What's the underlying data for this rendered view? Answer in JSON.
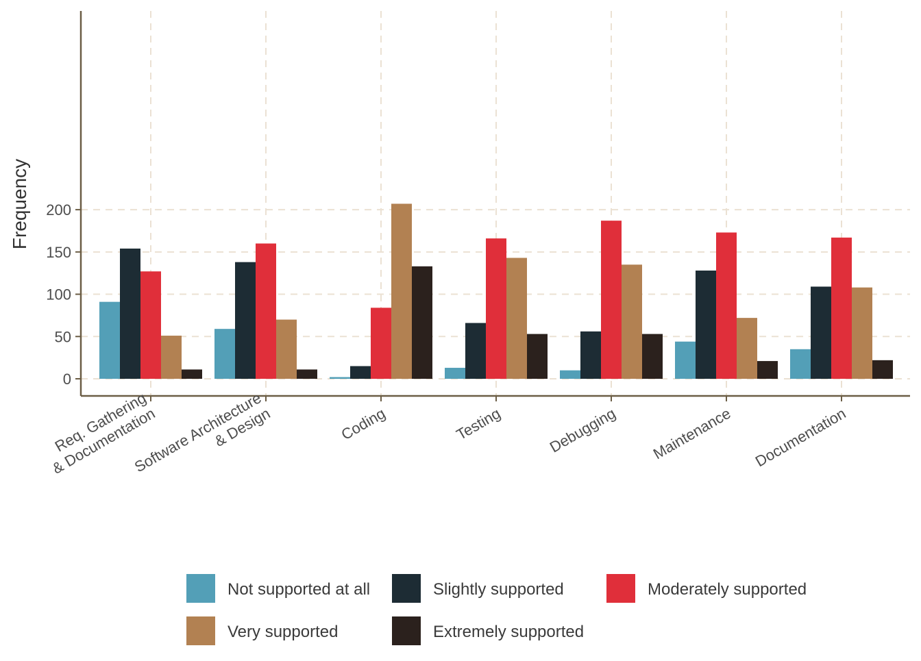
{
  "chart_data": {
    "type": "bar",
    "ylabel": "Frequency",
    "xlabel": "",
    "ylim": [
      -10,
      218
    ],
    "yticks": [
      0,
      50,
      100,
      150,
      200
    ],
    "grid": true,
    "legend_position": "bottom",
    "categories": [
      [
        "Req. Gathering",
        "& Documentation"
      ],
      [
        "Software Architecture",
        "& Design"
      ],
      [
        "Coding"
      ],
      [
        "Testing"
      ],
      [
        "Debugging"
      ],
      [
        "Maintenance"
      ],
      [
        "Documentation"
      ]
    ],
    "series": [
      {
        "name": "Not supported at all",
        "color": "#539fb7",
        "values": [
          91,
          59,
          2,
          13,
          10,
          44,
          35
        ]
      },
      {
        "name": "Slightly supported",
        "color": "#1d2c34",
        "values": [
          154,
          138,
          15,
          66,
          56,
          128,
          109
        ]
      },
      {
        "name": "Moderately supported",
        "color": "#e02f3a",
        "values": [
          127,
          160,
          84,
          166,
          187,
          173,
          167
        ]
      },
      {
        "name": "Very supported",
        "color": "#b28152",
        "values": [
          51,
          70,
          207,
          143,
          135,
          72,
          108
        ]
      },
      {
        "name": "Extremely supported",
        "color": "#2b211d",
        "values": [
          11,
          11,
          133,
          53,
          53,
          21,
          22
        ]
      }
    ],
    "colors": {
      "axis": "#6b5d45",
      "grid": "#ebe1d3"
    }
  }
}
